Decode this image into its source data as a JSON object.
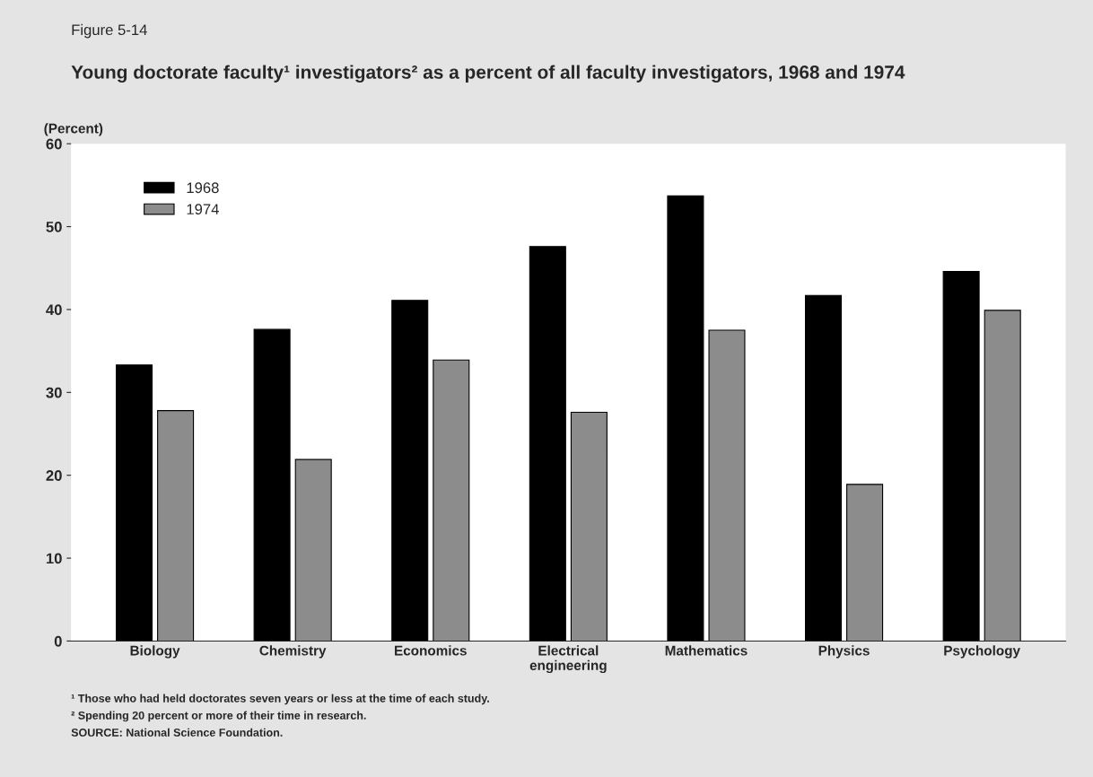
{
  "chart_data": {
    "type": "bar",
    "title": "Young doctorate faculty¹ investigators² as a percent of all faculty investigators, 1968 and 1974",
    "ylabel": "(Percent)",
    "categories": [
      "Biology",
      "Chemistry",
      "Economics",
      "Electrical\nengineering",
      "Mathematics",
      "Physics",
      "Psychology"
    ],
    "series": [
      {
        "name": "1968",
        "color": "#000000",
        "values": [
          33.3,
          37.6,
          41.1,
          47.6,
          53.7,
          41.7,
          44.6
        ]
      },
      {
        "name": "1974",
        "color": "#8c8c8c",
        "values": [
          27.8,
          21.9,
          33.9,
          27.6,
          37.5,
          18.9,
          39.9
        ]
      }
    ],
    "ylim": [
      0,
      60
    ],
    "yticks": [
      0,
      10,
      20,
      30,
      40,
      50,
      60
    ],
    "grid": false,
    "legend": "top left",
    "annotations": [
      "Figure 5-14",
      "¹ Those who had held doctorates seven years or less at the time of each study.",
      "² Spending 20 percent or more of their time in research.",
      "SOURCE: National Science Foundation."
    ]
  }
}
